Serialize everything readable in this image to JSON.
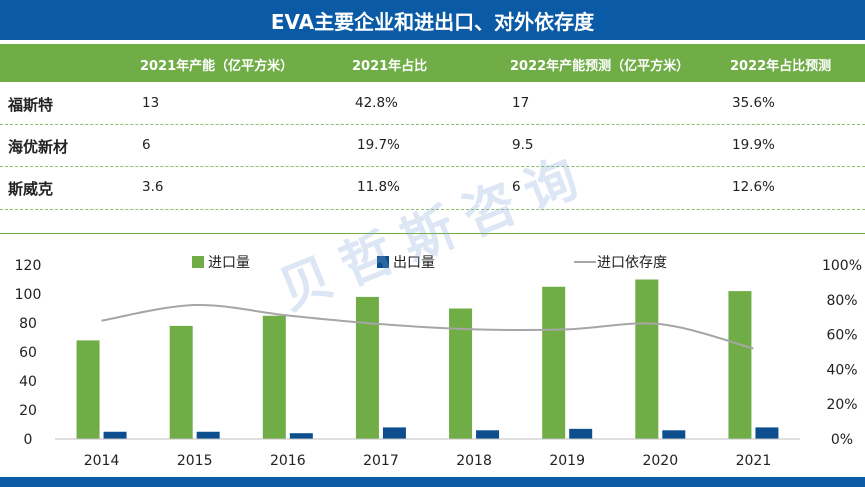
{
  "title": "EVA主要企业和进出口、对外依存度",
  "table": {
    "headers": [
      "2021年产能（亿平方米）",
      "2021年占比",
      "2022年产能预测（亿平方米）",
      "2022年占比预测"
    ],
    "rows": [
      {
        "name": "福斯特",
        "cells": [
          "13",
          "42.8%",
          "17",
          "35.6%"
        ]
      },
      {
        "name": "海优新材",
        "cells": [
          "6",
          "19.7%",
          "9.5",
          "19.9%"
        ]
      },
      {
        "name": "斯威克",
        "cells": [
          "3.6",
          "11.8%",
          "6",
          "12.6%"
        ]
      }
    ]
  },
  "watermark": "贝哲斯咨询",
  "chart_data": {
    "type": "bar",
    "categories": [
      "2014",
      "2015",
      "2016",
      "2017",
      "2018",
      "2019",
      "2020",
      "2021"
    ],
    "series": [
      {
        "name": "进口量",
        "type": "bar",
        "axis": "left",
        "color": "#70ad47",
        "values": [
          68,
          78,
          85,
          98,
          90,
          105,
          110,
          102
        ]
      },
      {
        "name": "出口量",
        "type": "bar",
        "axis": "left",
        "color": "#0d4f8e",
        "values": [
          5,
          5,
          4,
          8,
          6,
          7,
          6,
          8
        ]
      },
      {
        "name": "进口依存度",
        "type": "line",
        "axis": "right",
        "color": "#a6a6a6",
        "values": [
          68,
          77,
          71,
          66,
          63,
          63,
          66,
          52
        ]
      }
    ],
    "y_left": {
      "min": 0,
      "max": 120,
      "ticks": [
        "0",
        "20",
        "40",
        "60",
        "80",
        "100",
        "120"
      ]
    },
    "y_right": {
      "min": 0,
      "max": 100,
      "ticks": [
        "0%",
        "20%",
        "40%",
        "60%",
        "80%",
        "100%"
      ]
    },
    "legend_position": "top",
    "grid": false
  }
}
